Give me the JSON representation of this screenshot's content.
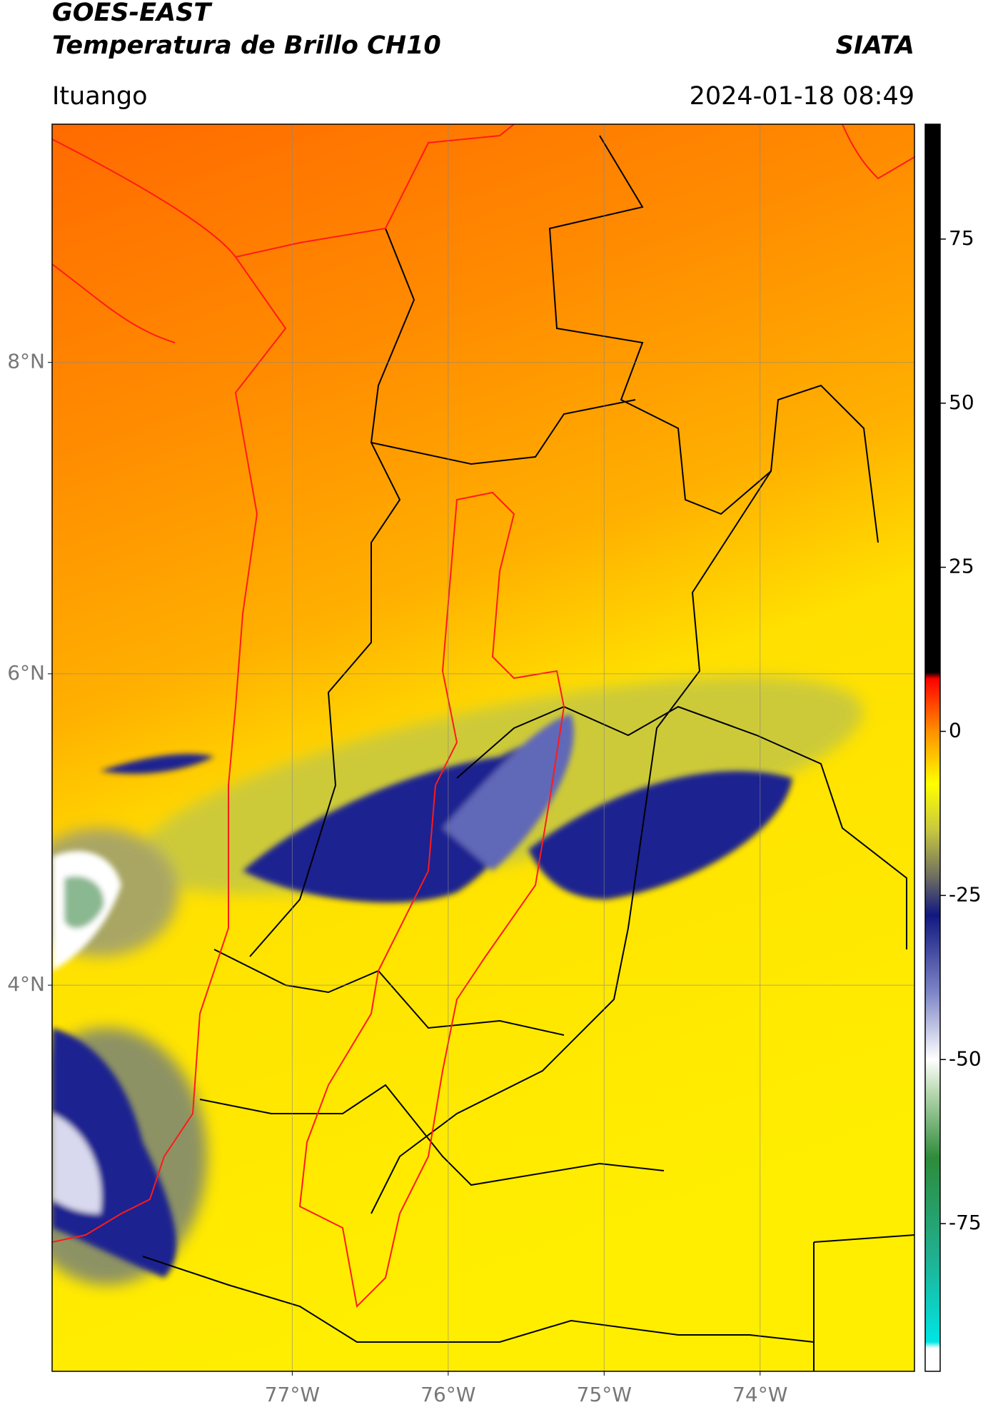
{
  "header": {
    "title": "GOES-EAST",
    "subtitle": "Temperatura de Brillo CH10",
    "source": "SIATA",
    "region": "Ituango",
    "datetime": "2024-01-18 08:49"
  },
  "map": {
    "xlim": [
      -78.54,
      -73.01
    ],
    "ylim": [
      1.52,
      9.53
    ],
    "xticks": [
      {
        "value": -77,
        "label": "77°W"
      },
      {
        "value": -76,
        "label": "76°W"
      },
      {
        "value": -75,
        "label": "75°W"
      },
      {
        "value": -74,
        "label": "74°W"
      }
    ],
    "yticks": [
      {
        "value": 8,
        "label": "8°N"
      },
      {
        "value": 6,
        "label": "6°N"
      },
      {
        "value": 4,
        "label": "4°N"
      }
    ],
    "grid": true
  },
  "colorbar": {
    "lim": [
      -97.5,
      92.5
    ],
    "ticks": [
      75,
      50,
      25,
      0,
      -25,
      -50,
      -75
    ],
    "stops": [
      {
        "value": -97.5,
        "color": "#ffffff"
      },
      {
        "value": -94,
        "color": "#ffffff"
      },
      {
        "value": -93,
        "color": "#00e5e5"
      },
      {
        "value": -80,
        "color": "#20b090"
      },
      {
        "value": -65,
        "color": "#2e8b3a"
      },
      {
        "value": -55,
        "color": "#b8d8b0"
      },
      {
        "value": -50,
        "color": "#ffffff"
      },
      {
        "value": -40,
        "color": "#8088c8"
      },
      {
        "value": -28,
        "color": "#101880"
      },
      {
        "value": -22,
        "color": "#707060"
      },
      {
        "value": -15,
        "color": "#c8c840"
      },
      {
        "value": -8,
        "color": "#ffff00"
      },
      {
        "value": 0,
        "color": "#ff9000"
      },
      {
        "value": 8,
        "color": "#ff0000"
      },
      {
        "value": 9,
        "color": "#000000"
      },
      {
        "value": 92.5,
        "color": "#000000"
      }
    ]
  }
}
